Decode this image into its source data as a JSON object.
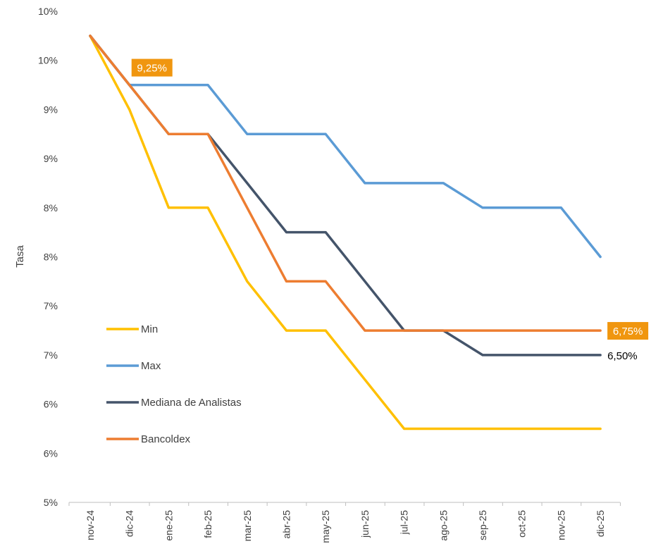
{
  "chart_data": {
    "type": "line",
    "ylabel": "Tasa",
    "categories": [
      "nov-24",
      "dic-24",
      "ene-25",
      "feb-25",
      "mar-25",
      "abr-25",
      "may-25",
      "jun-25",
      "jul-25",
      "ago-25",
      "sep-25",
      "oct-25",
      "nov-25",
      "dic-25"
    ],
    "y_ticks": [
      {
        "value": 5.0,
        "label": "5%"
      },
      {
        "value": 5.5,
        "label": "6%"
      },
      {
        "value": 6.0,
        "label": "6%"
      },
      {
        "value": 6.5,
        "label": "7%"
      },
      {
        "value": 7.0,
        "label": "7%"
      },
      {
        "value": 7.5,
        "label": "8%"
      },
      {
        "value": 8.0,
        "label": "8%"
      },
      {
        "value": 8.5,
        "label": "9%"
      },
      {
        "value": 9.0,
        "label": "9%"
      },
      {
        "value": 9.5,
        "label": "10%"
      },
      {
        "value": 10.0,
        "label": "10%"
      }
    ],
    "ylim": [
      5.0,
      10.0
    ],
    "grid": false,
    "legend_placement": "left-inside",
    "series": [
      {
        "name": "Min",
        "color": "#FFC000",
        "values": [
          9.75,
          9.0,
          8.0,
          8.0,
          7.25,
          6.75,
          6.75,
          6.25,
          5.75,
          5.75,
          5.75,
          5.75,
          5.75,
          5.75
        ]
      },
      {
        "name": "Max",
        "color": "#5B9BD5",
        "values": [
          9.75,
          9.25,
          9.25,
          9.25,
          8.75,
          8.75,
          8.75,
          8.25,
          8.25,
          8.25,
          8.0,
          8.0,
          8.0,
          7.5
        ]
      },
      {
        "name": "Mediana de Analistas",
        "color": "#44546A",
        "values": [
          9.75,
          9.25,
          8.75,
          8.75,
          8.25,
          7.75,
          7.75,
          7.25,
          6.75,
          6.75,
          6.5,
          6.5,
          6.5,
          6.5
        ]
      },
      {
        "name": "Bancoldex",
        "color": "#ED7D31",
        "values": [
          9.75,
          9.25,
          8.75,
          8.75,
          8.0,
          7.25,
          7.25,
          6.75,
          6.75,
          6.75,
          6.75,
          6.75,
          6.75,
          6.75
        ]
      }
    ],
    "annotations": [
      {
        "text": "9,25%",
        "series": "Bancoldex",
        "category": "dic-24",
        "boxed": true,
        "box_color": "#F0960F",
        "text_color": "#ffffff"
      },
      {
        "text": "6,75%",
        "series": "Bancoldex",
        "category": "dic-25",
        "boxed": true,
        "box_color": "#F0960F",
        "text_color": "#ffffff"
      },
      {
        "text": "6,50%",
        "series": "Mediana de Analistas",
        "category": "dic-25",
        "boxed": false,
        "text_color": "#000000"
      }
    ],
    "axis_color": "#BFBFBF"
  }
}
